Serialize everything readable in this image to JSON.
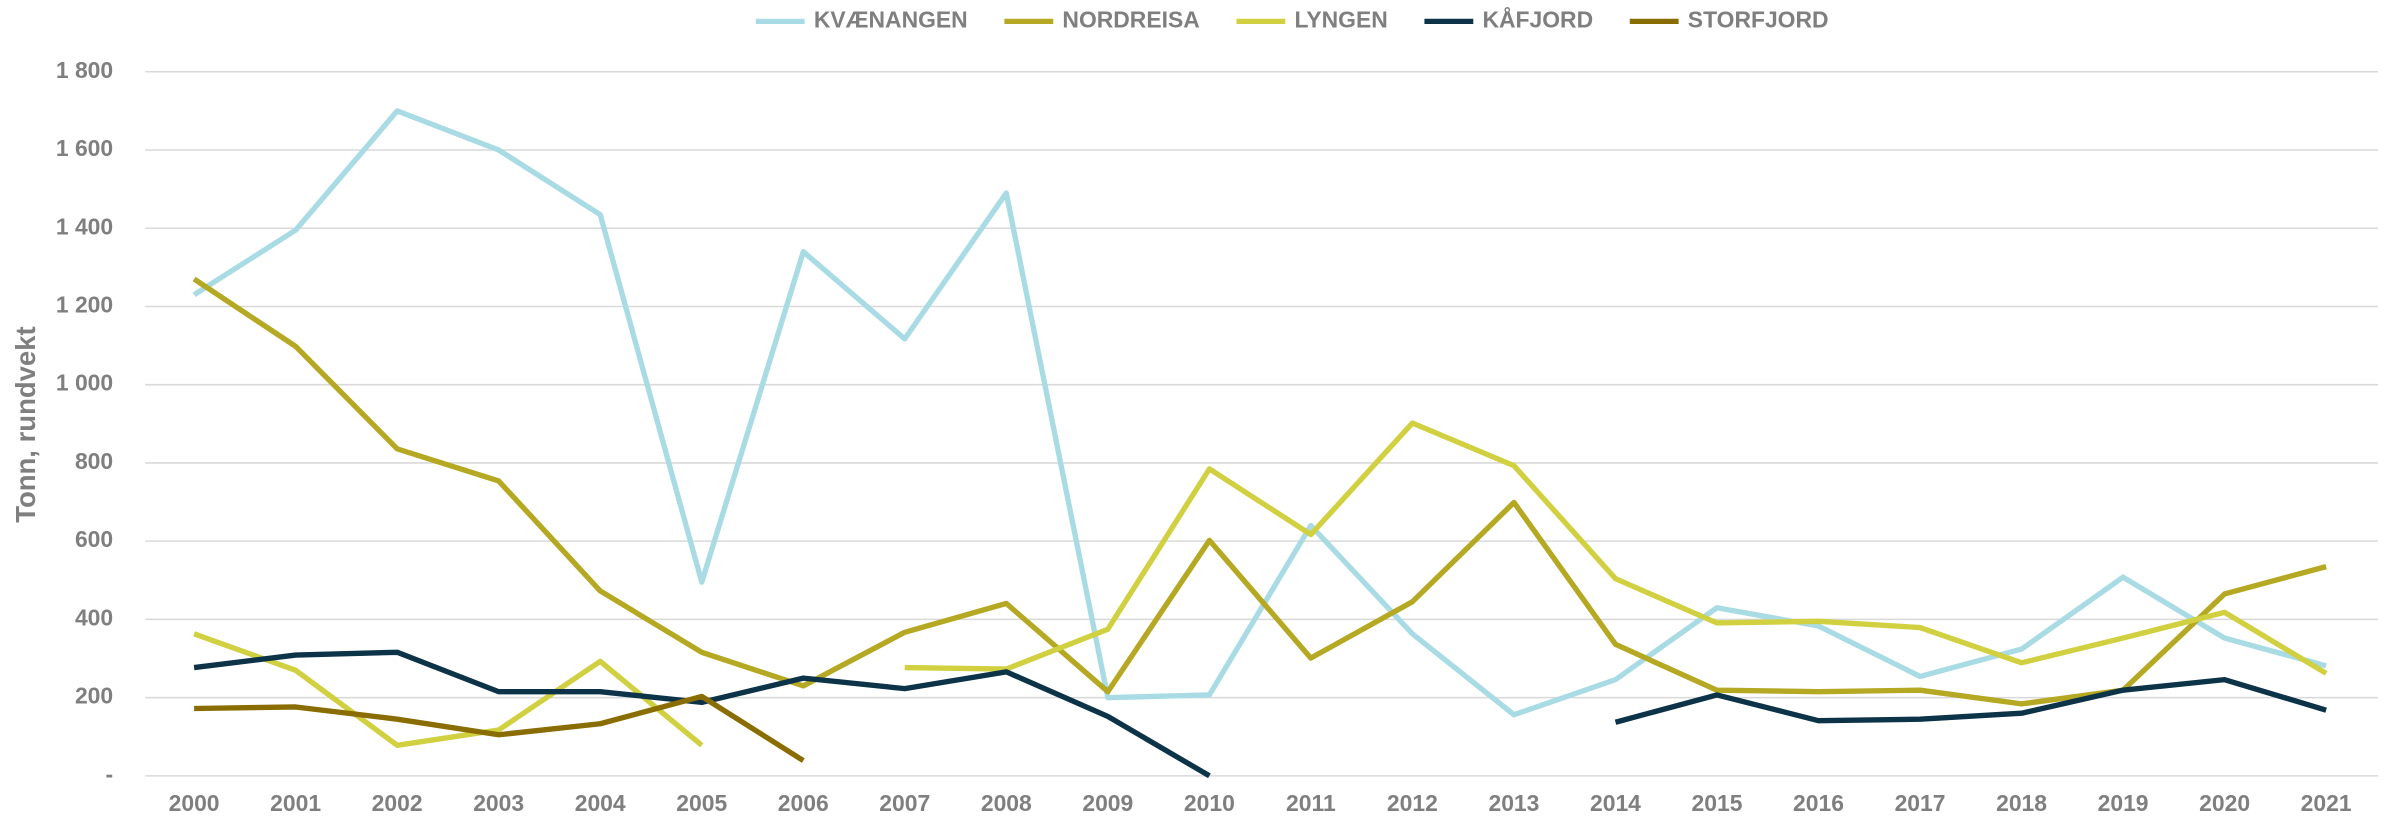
{
  "chart_data": {
    "type": "line",
    "y_label": "Tonn, rundvekt",
    "x": [
      "2000",
      "2001",
      "2002",
      "2003",
      "2004",
      "2005",
      "2006",
      "2007",
      "2008",
      "2009",
      "2010",
      "2011",
      "2012",
      "2013",
      "2014",
      "2015",
      "2016",
      "2017",
      "2018",
      "2019",
      "2020",
      "2021"
    ],
    "series": [
      {
        "name": "KVÆNANGEN",
        "color": "#a9dbe4",
        "values": [
          1230,
          1395,
          1700,
          1600,
          1435,
          495,
          1340,
          1117,
          1490,
          200,
          207,
          640,
          363,
          156,
          246,
          430,
          383,
          254,
          324,
          508,
          352,
          281
        ]
      },
      {
        "name": "NORDREISA",
        "color": "#b5a822",
        "values": [
          1270,
          1098,
          836,
          754,
          473,
          316,
          230,
          367,
          441,
          215,
          602,
          301,
          445,
          699,
          336,
          219,
          215,
          219,
          184,
          219,
          465,
          535
        ]
      },
      {
        "name": "LYNGEN",
        "color": "#d0d040",
        "values": [
          363,
          270,
          78,
          117,
          293,
          78,
          null,
          277,
          273,
          375,
          785,
          617,
          902,
          793,
          504,
          391,
          395,
          379,
          289,
          352,
          418,
          262
        ]
      },
      {
        "name": "KÅFJORD",
        "color": "#0d3349",
        "values": [
          277,
          309,
          316,
          215,
          215,
          188,
          250,
          223,
          266,
          152,
          0,
          null,
          null,
          null,
          137,
          207,
          141,
          145,
          160,
          219,
          246,
          168
        ]
      },
      {
        "name": "STORFJORD",
        "color": "#8a6d00",
        "values": [
          172,
          176,
          145,
          105,
          133,
          203,
          39,
          null,
          null,
          null,
          null,
          null,
          null,
          null,
          null,
          null,
          null,
          null,
          null,
          null,
          null,
          null
        ]
      }
    ],
    "ylim": [
      0,
      1800
    ],
    "yticks": [
      {
        "value": 0,
        "label": "-"
      },
      {
        "value": 200,
        "label": "200"
      },
      {
        "value": 400,
        "label": "400"
      },
      {
        "value": 600,
        "label": "600"
      },
      {
        "value": 800,
        "label": "800"
      },
      {
        "value": 1000,
        "label": "1 000"
      },
      {
        "value": 1200,
        "label": "1 200"
      },
      {
        "value": 1400,
        "label": "1 400"
      },
      {
        "value": 1600,
        "label": "1 600"
      },
      {
        "value": 1800,
        "label": "1 800"
      }
    ],
    "grid": true,
    "legend": "top"
  }
}
